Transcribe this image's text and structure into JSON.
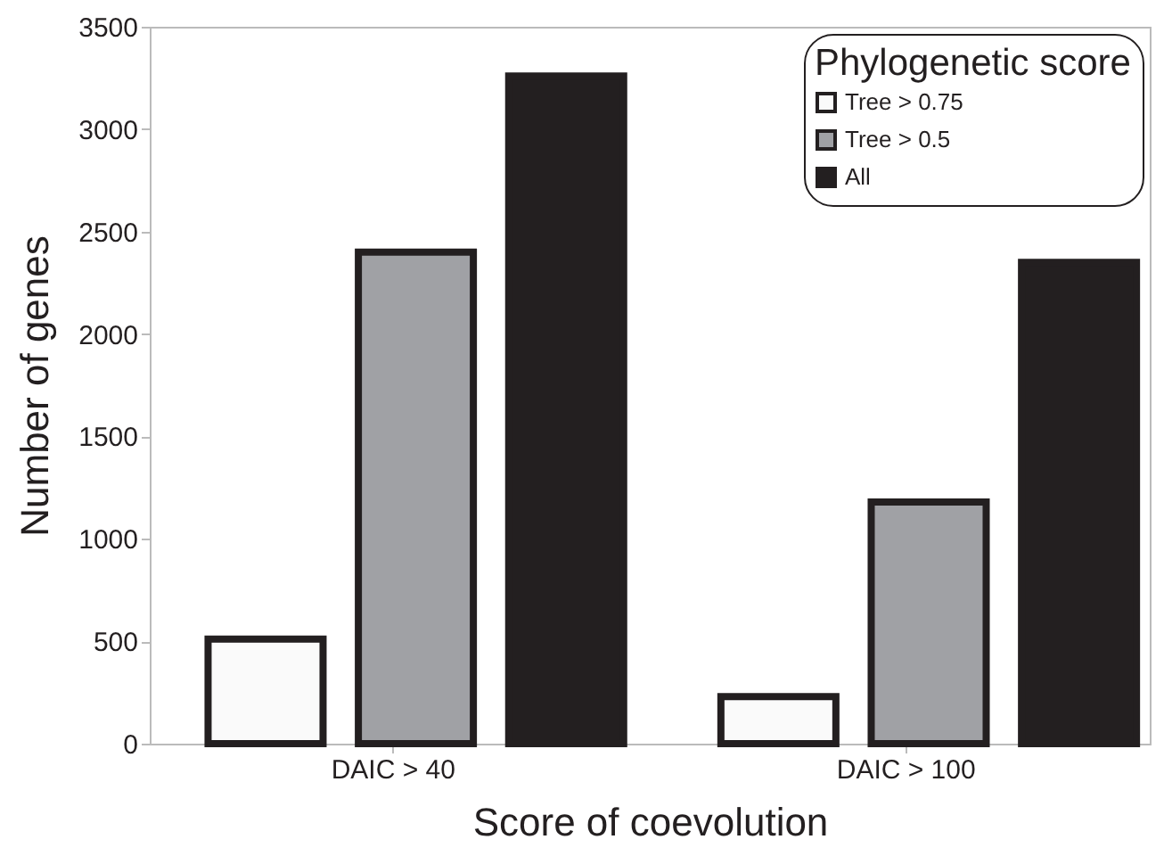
{
  "chart_data": {
    "type": "bar",
    "xlabel": "Score of coevolution",
    "ylabel": "Number of genes",
    "legend_title": "Phylogenetic score",
    "categories": [
      "DAIC > 40",
      "DAIC > 100"
    ],
    "series": [
      {
        "name": "Tree > 0.75",
        "color": "#fafafa",
        "values": [
          510,
          230
        ]
      },
      {
        "name": "Tree > 0.5",
        "color": "#a0a1a5",
        "values": [
          2400,
          1180
        ]
      },
      {
        "name": "All",
        "color": "#231f20",
        "values": [
          3260,
          2350
        ]
      }
    ],
    "ylim": [
      0,
      3500
    ],
    "yticks": [
      0,
      500,
      1000,
      1500,
      2000,
      2500,
      3000,
      3500
    ],
    "grid": false,
    "legend": "top right"
  }
}
